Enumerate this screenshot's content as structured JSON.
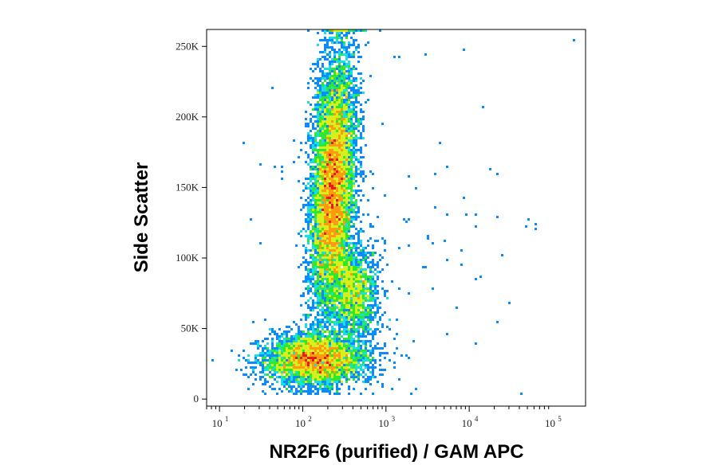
{
  "chart_data": {
    "type": "scatter",
    "plot_style": "flow cytometry density dot plot (pseudocolor)",
    "xlabel": "NR2F6 (purified) / GAM APC",
    "ylabel": "Side Scatter",
    "x_scale": "log",
    "xlim": [
      7,
      250000
    ],
    "ylim": [
      -5000,
      262000
    ],
    "x_ticks": [
      {
        "value": 10,
        "base": "10",
        "exp": "1"
      },
      {
        "value": 100,
        "base": "10",
        "exp": "2"
      },
      {
        "value": 1000,
        "base": "10",
        "exp": "3"
      },
      {
        "value": 10000,
        "base": "10",
        "exp": "4"
      },
      {
        "value": 100000,
        "base": "10",
        "exp": "5"
      }
    ],
    "y_ticks": [
      {
        "value": 0,
        "label": "0"
      },
      {
        "value": 50000,
        "label": "50K"
      },
      {
        "value": 100000,
        "label": "100K"
      },
      {
        "value": 150000,
        "label": "150K"
      },
      {
        "value": 200000,
        "label": "200K"
      },
      {
        "value": 250000,
        "label": "250K"
      }
    ],
    "density_colors": [
      "#1a1aff",
      "#0a8cff",
      "#17e0e0",
      "#2ee82e",
      "#d8f01a",
      "#ff9a10",
      "#e81a1a"
    ],
    "populations": [
      {
        "name": "main",
        "x_center": 230,
        "y_center": 150000,
        "log_x_sd": 0.13,
        "y_sd": 45000,
        "xy_corr": 0.25,
        "count": 9000
      },
      {
        "name": "shoulder",
        "x_center": 420,
        "y_center": 75000,
        "log_x_sd": 0.14,
        "y_sd": 16000,
        "xy_corr": 0.0,
        "count": 1600
      },
      {
        "name": "low-ssc",
        "x_center": 140,
        "y_center": 28000,
        "log_x_sd": 0.3,
        "y_sd": 9000,
        "xy_corr": 0.0,
        "count": 4200
      },
      {
        "name": "sparse",
        "x_center": 900,
        "y_center": 120000,
        "log_x_sd": 0.8,
        "y_sd": 60000,
        "xy_corr": 0.0,
        "count": 120
      }
    ],
    "grid": false,
    "legend": "none"
  }
}
